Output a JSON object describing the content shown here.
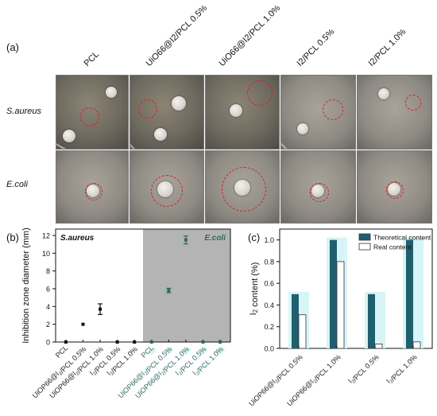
{
  "photos": {
    "panel_label": "(a)",
    "columns": [
      {
        "label": "PCL"
      },
      {
        "label": "UiO66@I2/PCL 0.5%"
      },
      {
        "label": "UiO66@I2/PCL 1.0%"
      },
      {
        "label": "I2/PCL 0.5%"
      },
      {
        "label": "I2/PCL 1.0%"
      }
    ],
    "rows": [
      {
        "label": "S.aureus"
      },
      {
        "label": "E.coli"
      }
    ]
  },
  "chart_data": [
    {
      "id": "b",
      "panel_label": "(b)",
      "type": "scatter",
      "ylabel": "Inhibition zone diameter (mm)",
      "ylim": [
        0,
        12
      ],
      "yticks": [
        "0",
        "2",
        "4",
        "6",
        "8",
        "10",
        "12"
      ],
      "grid": false,
      "regions": [
        {
          "name": "S.aureus",
          "background": "#ffffff"
        },
        {
          "name": "E.coli",
          "background": "#b4b4b4"
        }
      ],
      "categories": [
        "PCL",
        "UiOP66@I2/PCL 0.5%",
        "UiOP66@I2/PCL 1.0%",
        "I2/PCL 0.5%",
        "I2/PCL 1.0%",
        "PCL",
        "UiOP66@I2/PCL 0.5%",
        "UiOP66@I2/PCL 1.0%",
        "I2/PCL 0.5%",
        "I2/PCL 1.0%"
      ],
      "values": [
        0,
        2.0,
        3.7,
        0,
        0,
        0,
        5.8,
        11.5,
        0,
        0
      ],
      "errors": [
        0,
        0,
        0.6,
        0,
        0,
        0,
        0.25,
        0.45,
        0,
        0
      ],
      "colors": {
        "s_aureus": "#111111",
        "e_coli": "#2e6a60"
      }
    },
    {
      "id": "c",
      "panel_label": "(c)",
      "type": "bar",
      "ylabel": "I2 content (%)",
      "ylim": [
        0,
        1.1
      ],
      "yticks": [
        "0.0",
        "0.2",
        "0.4",
        "0.6",
        "0.8",
        "1.0"
      ],
      "categories": [
        "UiOP66@I2/PCL 0.5%",
        "UiOP66@I2/PCL 1.0%",
        "I2/PCL 0.5%",
        "I2/PCL 1.0%"
      ],
      "series": [
        {
          "name": "Theoretical content",
          "values": [
            0.5,
            1.0,
            0.5,
            1.0
          ],
          "color": "#1f5f6e"
        },
        {
          "name": "Real content",
          "values": [
            0.31,
            0.8,
            0.04,
            0.06
          ],
          "color": "#ffffff"
        }
      ],
      "legend": "top-right"
    }
  ]
}
